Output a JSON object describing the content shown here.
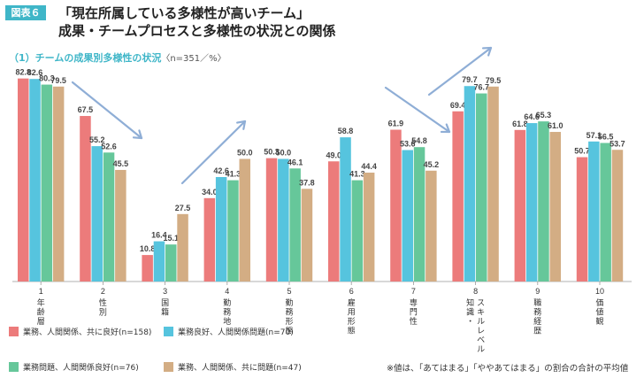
{
  "header": {
    "figure_label": "図表６",
    "title_line1": "「現在所属している多様性が高いチーム」",
    "title_line2": "成果・チームプロセスと多様性の状況との関係"
  },
  "subtitle": {
    "main": "（1）チームの成果別多様性の状況",
    "note": "〈n=351／%〉"
  },
  "footnote": "※値は、「あてはまる」「ややあてはまる」の割合の合計の平均値",
  "colors": {
    "s1": "#ec7b7b",
    "s2": "#56c4de",
    "s3": "#66c79a",
    "s4": "#d3ad84",
    "arrow": "#8faed6"
  },
  "chart_data": {
    "type": "bar",
    "categories": [
      {
        "num": "1",
        "label": "年齢層"
      },
      {
        "num": "2",
        "label": "性別"
      },
      {
        "num": "3",
        "label": "国籍"
      },
      {
        "num": "4",
        "label": "勤務地"
      },
      {
        "num": "5",
        "label": "勤務形態"
      },
      {
        "num": "6",
        "label": "雇用形態"
      },
      {
        "num": "7",
        "label": "専門性"
      },
      {
        "num": "8",
        "label": "知識・スキルレベル"
      },
      {
        "num": "9",
        "label": "職務経歴"
      },
      {
        "num": "10",
        "label": "価値観"
      }
    ],
    "series": [
      {
        "name": "業務、人間関係、共に良好(n=158)",
        "values": [
          82.8,
          67.5,
          10.8,
          34.0,
          50.3,
          49.0,
          61.9,
          69.4,
          61.8,
          50.7
        ]
      },
      {
        "name": "業務良好、人間関係問題(n=70)",
        "values": [
          82.6,
          55.2,
          16.4,
          42.6,
          50.0,
          58.8,
          53.6,
          79.7,
          64.6,
          57.1
        ]
      },
      {
        "name": "業務問題、人間関係良好(n=76)",
        "values": [
          80.3,
          52.6,
          15.1,
          41.3,
          46.1,
          41.3,
          54.8,
          76.7,
          65.3,
          56.5
        ]
      },
      {
        "name": "業務、人間関係、共に問題(n=47)",
        "values": [
          79.5,
          45.5,
          27.5,
          50.0,
          37.8,
          44.4,
          45.2,
          79.5,
          61.0,
          53.7
        ]
      }
    ],
    "ylim": [
      0,
      90
    ],
    "title": "（1）チームの成果別多様性の状況",
    "xlabel": "",
    "ylabel": ""
  }
}
